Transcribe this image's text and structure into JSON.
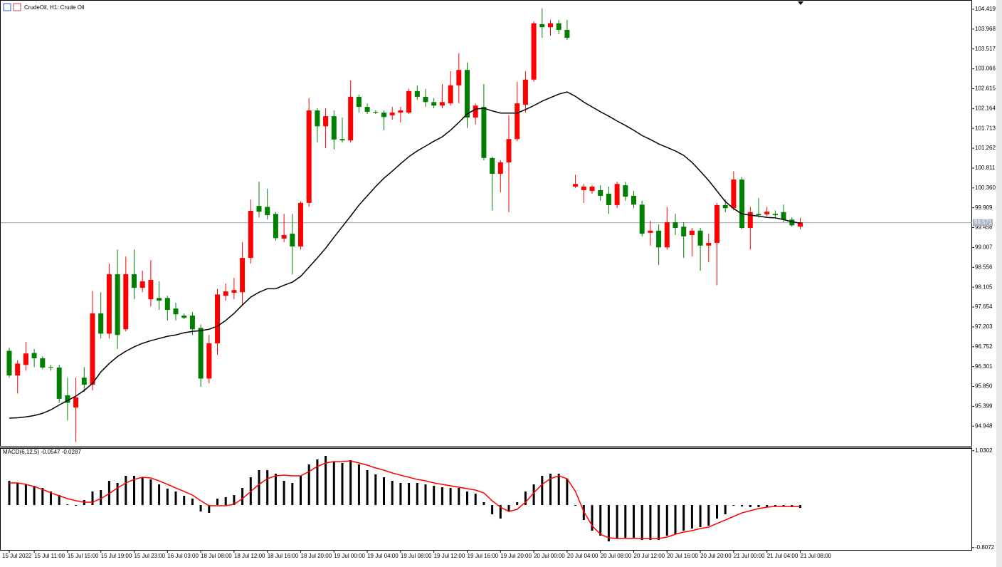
{
  "chart_data": [
    {
      "type": "candlestick",
      "title": "CrudeOil, H1:  Crude Oil",
      "categories": [
        "15 Jul 2022",
        null,
        null,
        "15 Jul 11:00",
        null,
        null,
        null,
        "15 Jul 15:00",
        null,
        null,
        null,
        "15 Jul 19:00",
        null,
        null,
        null,
        "15 Jul 23:00",
        null,
        null,
        null,
        "16 Jul 03:00",
        null,
        null,
        null,
        "18 Jul 08:00",
        null,
        null,
        null,
        "18 Jul 12:00",
        null,
        null,
        null,
        "18 Jul 16:00",
        null,
        null,
        null,
        "18 Jul 20:00",
        null,
        null,
        null,
        "19 Jul 00:00",
        null,
        null,
        null,
        "19 Jul 04:00",
        null,
        null,
        null,
        "19 Jul 08:00",
        null,
        null,
        null,
        "19 Jul 12:00",
        null,
        null,
        null,
        "19 Jul 16:00",
        null,
        null,
        null,
        "19 Jul 20:00",
        null,
        null,
        null,
        "20 Jul 00:00",
        null,
        null,
        null,
        "20 Jul 04:00",
        null,
        null,
        null,
        "20 Jul 08:00",
        null,
        null,
        null,
        "20 Jul 12:00",
        null,
        null,
        null,
        "20 Jul 16:00",
        null,
        null,
        null,
        "20 Jul 20:00",
        null,
        null,
        null,
        "21 Jul 00:00",
        null,
        null,
        null,
        "21 Jul 04:00",
        null,
        null,
        null,
        "21 Jul 08:00"
      ],
      "open": [
        96.66,
        96.1,
        96.34,
        96.61,
        96.49,
        96.29,
        96.28,
        95.65,
        95.37,
        96.05,
        95.89,
        97.51,
        97.05,
        98.4,
        97.15,
        98.4,
        98.09,
        97.83,
        97.86,
        97.86,
        97.62,
        97.46,
        97.46,
        97.18,
        96.03,
        96.83,
        97.91,
        97.98,
        97.99,
        98.77,
        99.95,
        99.93,
        99.77,
        99.21,
        99.32,
        99.03,
        100.02,
        102.12,
        101.76,
        101.99,
        101.47,
        101.44,
        102.43,
        102.2,
        102.09,
        102.07,
        102.01,
        102.07,
        102.07,
        102.56,
        102.43,
        102.31,
        102.23,
        102.28,
        102.69,
        103.04,
        101.96,
        102.2,
        101.04,
        100.68,
        100.94,
        101.47,
        102.25,
        102.82,
        104.08,
        104.01,
        104.1,
        103.95,
        100.39,
        100.31,
        100.29,
        100.31,
        100.23,
        99.97,
        100.42,
        100.18,
        99.98,
        99.34,
        99.39,
        99.01,
        99.58,
        99.48,
        99.29,
        99.39,
        99.05,
        99.11,
        99.97,
        99.9,
        100.55,
        99.45,
        99.77,
        99.76,
        99.77,
        99.81,
        99.64,
        99.48
      ],
      "high": [
        96.73,
        96.45,
        96.86,
        96.7,
        96.54,
        96.34,
        96.34,
        96.05,
        96.05,
        96.29,
        98.02,
        97.99,
        98.64,
        98.96,
        98.8,
        98.96,
        98.48,
        98.72,
        98.24,
        97.91,
        97.75,
        97.51,
        97.54,
        97.26,
        97.02,
        98.07,
        98.19,
        98.32,
        99.13,
        100.1,
        100.5,
        100.34,
        99.81,
        99.77,
        99.77,
        100.05,
        102.4,
        102.17,
        102.17,
        102.12,
        101.96,
        102.8,
        102.48,
        102.28,
        102.12,
        102.12,
        102.2,
        102.2,
        102.61,
        102.69,
        102.61,
        102.4,
        102.72,
        103.01,
        103.42,
        103.21,
        102.28,
        102.72,
        101.07,
        100.99,
        102.01,
        102.77,
        103.01,
        104.14,
        104.44,
        104.18,
        104.18,
        104.18,
        100.66,
        100.45,
        100.42,
        100.42,
        100.39,
        100.5,
        100.5,
        100.29,
        100.07,
        99.61,
        99.53,
        99.93,
        99.77,
        99.58,
        99.45,
        99.45,
        99.32,
        100.02,
        100.1,
        100.74,
        100.61,
        99.93,
        100.13,
        99.93,
        99.85,
        99.98,
        99.69,
        99.68
      ],
      "low": [
        96.05,
        95.69,
        96.21,
        96.29,
        96.24,
        96.21,
        95.48,
        95.08,
        94.59,
        95.73,
        95.76,
        96.94,
        96.94,
        96.7,
        97.1,
        97.83,
        97.99,
        97.67,
        97.59,
        97.35,
        97.35,
        97.38,
        97.02,
        95.84,
        95.92,
        96.57,
        97.8,
        97.83,
        97.7,
        98.64,
        99.69,
        99.64,
        99.16,
        99.13,
        98.4,
        98.96,
        99.93,
        101.39,
        101.26,
        101.23,
        101.39,
        101.39,
        102.07,
        102.04,
        102.04,
        101.67,
        101.91,
        101.85,
        102.04,
        102.36,
        102.2,
        102.17,
        102.17,
        102.23,
        102.28,
        101.72,
        101.8,
        100.99,
        99.85,
        100.26,
        99.81,
        101.42,
        102.07,
        102.77,
        103.77,
        103.82,
        103.85,
        103.72,
        100.36,
        100.02,
        100.23,
        100.07,
        99.77,
        99.9,
        100.07,
        99.9,
        99.26,
        99.05,
        98.61,
        98.96,
        99.29,
        98.77,
        98.8,
        98.48,
        98.67,
        98.15,
        99.81,
        99.85,
        99.42,
        98.96,
        99.69,
        99.72,
        99.69,
        99.58,
        99.48,
        99.42
      ],
      "close": [
        96.1,
        96.37,
        96.6,
        96.49,
        96.28,
        96.28,
        95.57,
        95.48,
        95.6,
        95.89,
        97.51,
        97.05,
        98.4,
        97.02,
        98.4,
        98.09,
        98.24,
        98.27,
        97.8,
        97.59,
        97.49,
        97.41,
        97.15,
        96.03,
        96.83,
        97.94,
        98.01,
        98.04,
        98.77,
        99.84,
        99.82,
        99.74,
        99.22,
        99.29,
        99.03,
        100.02,
        102.12,
        101.76,
        101.99,
        101.46,
        101.44,
        102.43,
        102.2,
        102.09,
        102.07,
        101.97,
        102.07,
        102.12,
        102.56,
        102.43,
        102.31,
        102.23,
        102.31,
        102.69,
        103.04,
        101.96,
        102.23,
        101.04,
        100.68,
        100.94,
        101.47,
        102.28,
        102.82,
        104.1,
        104.01,
        104.1,
        103.95,
        103.77,
        100.45,
        100.39,
        100.39,
        100.18,
        99.97,
        100.45,
        100.16,
        99.98,
        99.32,
        99.39,
        99.01,
        99.58,
        99.45,
        99.26,
        99.39,
        99.05,
        99.11,
        99.97,
        99.9,
        100.55,
        99.45,
        99.81,
        99.74,
        99.82,
        99.74,
        99.64,
        99.51,
        99.58
      ],
      "up_color": "#ff0000",
      "down_color": "#008000",
      "line": {
        "color": "#000000",
        "values": [
          95.13,
          95.14,
          95.16,
          95.19,
          95.24,
          95.32,
          95.43,
          95.53,
          95.63,
          95.76,
          95.92,
          96.18,
          96.37,
          96.53,
          96.65,
          96.75,
          96.83,
          96.89,
          96.94,
          96.99,
          97.02,
          97.07,
          97.1,
          97.12,
          97.15,
          97.22,
          97.35,
          97.51,
          97.7,
          97.88,
          97.99,
          98.07,
          98.07,
          98.15,
          98.22,
          98.35,
          98.56,
          98.77,
          98.99,
          99.24,
          99.48,
          99.72,
          99.97,
          100.18,
          100.39,
          100.58,
          100.74,
          100.91,
          101.07,
          101.2,
          101.31,
          101.42,
          101.52,
          101.67,
          101.85,
          102.04,
          102.15,
          102.17,
          102.11,
          102.06,
          102.06,
          102.06,
          102.14,
          102.23,
          102.33,
          102.41,
          102.49,
          102.54,
          102.44,
          102.31,
          102.2,
          102.09,
          101.99,
          101.88,
          101.78,
          101.67,
          101.55,
          101.46,
          101.36,
          101.28,
          101.2,
          101.1,
          100.94,
          100.74,
          100.53,
          100.29,
          100.05,
          99.89,
          99.77,
          99.74,
          99.72,
          99.69,
          99.68,
          99.64,
          99.59,
          99.56
        ]
      },
      "current_price": 99.571,
      "ylim": [
        94.5,
        104.58
      ],
      "yticks": [
        104.419,
        103.968,
        103.517,
        103.066,
        102.615,
        102.164,
        101.713,
        101.262,
        100.811,
        {
          "value": 100.36,
          "label": "100.360"
        },
        99.909,
        99.458,
        99.007,
        98.556,
        98.105,
        97.654,
        97.203,
        96.752,
        96.301,
        {
          "value": 95.85,
          "label": "95.850"
        },
        95.399,
        94.948
      ]
    },
    {
      "type": "macd",
      "title": "MACD(6,12,5) -0.0547 -0.0287",
      "histogram": {
        "color": "#000000",
        "values": [
          0.459,
          0.419,
          0.392,
          0.365,
          0.324,
          0.257,
          0.189,
          0.014,
          -0.014,
          0.095,
          0.257,
          0.284,
          0.459,
          0.419,
          0.554,
          0.554,
          0.527,
          0.486,
          0.392,
          0.311,
          0.257,
          0.176,
          0.122,
          -0.122,
          -0.149,
          0.122,
          0.149,
          0.189,
          0.324,
          0.527,
          0.662,
          0.662,
          0.594,
          0.459,
          0.419,
          0.554,
          0.77,
          0.865,
          0.932,
          0.824,
          0.797,
          0.851,
          0.77,
          0.662,
          0.581,
          0.527,
          0.459,
          0.419,
          0.419,
          0.419,
          0.392,
          0.365,
          0.338,
          0.324,
          0.324,
          0.257,
          0.216,
          0.054,
          -0.176,
          -0.257,
          -0.122,
          0.054,
          0.257,
          0.392,
          0.554,
          0.594,
          0.594,
          0.5,
          0,
          -0.284,
          -0.486,
          -0.581,
          -0.689,
          -0.635,
          -0.621,
          -0.621,
          -0.662,
          -0.662,
          -0.662,
          -0.581,
          -0.554,
          -0.486,
          -0.446,
          -0.419,
          -0.392,
          -0.257,
          -0.176,
          -0.014,
          -0.027,
          -0.041,
          -0.041,
          -0.041,
          -0.027,
          -0.027,
          -0.041,
          -0.0547
        ]
      },
      "signal": {
        "color": "#ff0000",
        "values": [
          0.419,
          0.419,
          0.392,
          0.351,
          0.297,
          0.23,
          0.176,
          0.122,
          0.081,
          0.054,
          0.054,
          0.122,
          0.216,
          0.324,
          0.419,
          0.486,
          0.527,
          0.513,
          0.459,
          0.392,
          0.324,
          0.257,
          0.189,
          0.081,
          -0.014,
          -0.014,
          -0.014,
          0.014,
          0.122,
          0.257,
          0.392,
          0.5,
          0.554,
          0.567,
          0.554,
          0.554,
          0.635,
          0.73,
          0.797,
          0.824,
          0.824,
          0.838,
          0.797,
          0.757,
          0.703,
          0.662,
          0.608,
          0.567,
          0.527,
          0.486,
          0.459,
          0.419,
          0.392,
          0.365,
          0.338,
          0.311,
          0.284,
          0.23,
          0.081,
          -0.041,
          -0.122,
          -0.081,
          0.054,
          0.23,
          0.392,
          0.5,
          0.554,
          0.5,
          0.257,
          -0.122,
          -0.392,
          -0.554,
          -0.621,
          -0.635,
          -0.635,
          -0.635,
          -0.635,
          -0.635,
          -0.635,
          -0.608,
          -0.554,
          -0.513,
          -0.486,
          -0.446,
          -0.419,
          -0.351,
          -0.284,
          -0.216,
          -0.149,
          -0.108,
          -0.068,
          -0.041,
          -0.027,
          -0.027,
          -0.027,
          -0.0287
        ]
      },
      "ylim": [
        -0.851,
        1.081
      ],
      "yticks": [
        1.0302,
        -0.8072
      ]
    }
  ]
}
